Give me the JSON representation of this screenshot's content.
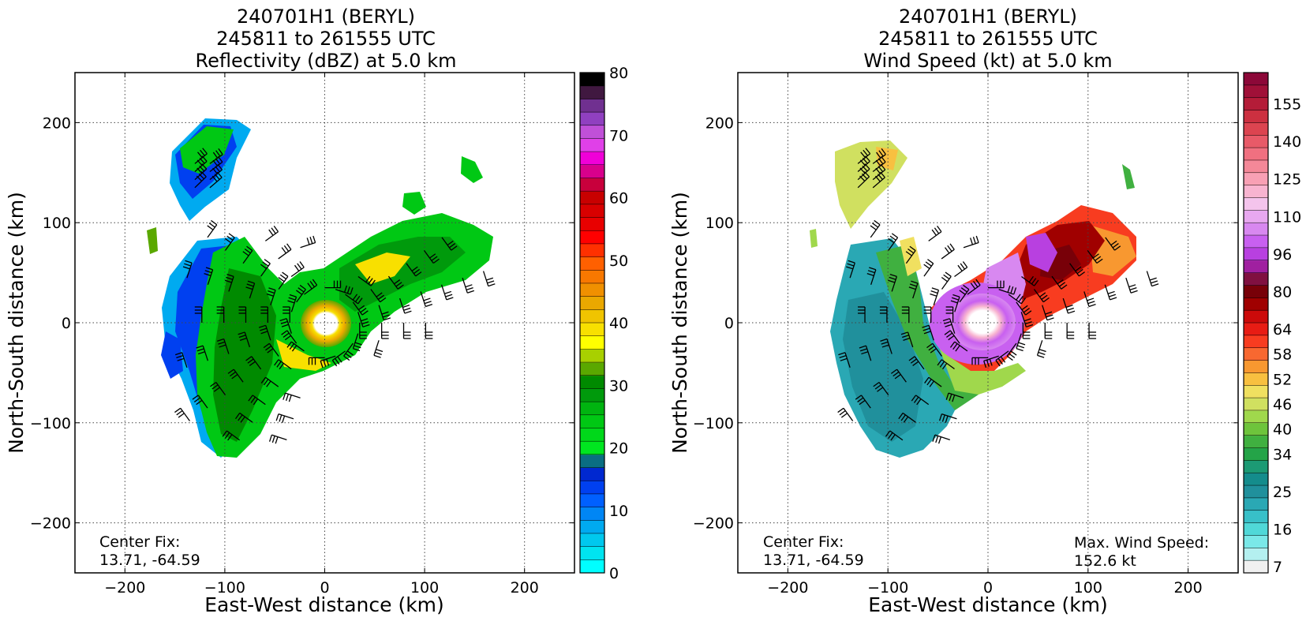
{
  "panels": [
    {
      "title_line1": "240701H1 (BERYL)",
      "title_line2": "245811 to 261555 UTC",
      "title_line3": "Reflectivity (dBZ) at 5.0 km",
      "xlabel": "East-West distance (km)",
      "ylabel": "North-South distance (km)",
      "center_fix_label": "Center Fix:",
      "center_fix_value": "13.71, -64.59"
    },
    {
      "title_line1": "240701H1 (BERYL)",
      "title_line2": "245811 to 261555 UTC",
      "title_line3": "Wind Speed (kt) at 5.0 km",
      "xlabel": "East-West distance (km)",
      "ylabel": "North-South distance (km)",
      "center_fix_label": "Center Fix:",
      "center_fix_value": "13.71, -64.59",
      "max_wind_label": "Max. Wind Speed:",
      "max_wind_value": "152.6 kt"
    }
  ],
  "chart_data": [
    {
      "type": "heatmap",
      "variable": "Reflectivity (dBZ)",
      "xlim": [
        -250,
        250
      ],
      "ylim": [
        -250,
        250
      ],
      "xticks": [
        -200,
        -100,
        0,
        100,
        200
      ],
      "yticks": [
        -200,
        -100,
        0,
        100,
        200
      ],
      "grid": true,
      "colorbar": {
        "ticks": [
          0,
          10,
          20,
          30,
          40,
          50,
          60,
          70,
          80
        ],
        "tick_labels": [
          "0",
          "10",
          "20",
          "30",
          "40",
          "50",
          "60",
          "70",
          "80"
        ],
        "colors": [
          "#00ffff",
          "#00e4f0",
          "#00c8ee",
          "#00aaf0",
          "#0086f5",
          "#0060ff",
          "#0040f0",
          "#0028d0",
          "#0a6e82",
          "#00e620",
          "#00d81a",
          "#00c814",
          "#00b410",
          "#009a0c",
          "#008a00",
          "#5aa800",
          "#a8d000",
          "#ffff00",
          "#f8e000",
          "#f0c400",
          "#eaa800",
          "#f09000",
          "#f87800",
          "#ff6000",
          "#ff3000",
          "#ff0000",
          "#e80000",
          "#d80000",
          "#c80000",
          "#c8003c",
          "#d8008c",
          "#f000d8",
          "#e040e8",
          "#c050d8",
          "#9040c0",
          "#703090",
          "#401840",
          "#000000"
        ]
      },
      "storm_center": [
        0,
        0
      ],
      "features": [
        {
          "name": "northwest-cell",
          "center": [
            -130,
            155
          ],
          "radius": [
            40,
            45
          ],
          "dominant": "blue-green"
        },
        {
          "name": "spiral-band",
          "center": [
            -70,
            0
          ],
          "radius": [
            60,
            120
          ],
          "dominant": "green"
        },
        {
          "name": "eyewall",
          "center": [
            0,
            0
          ],
          "radius": [
            25,
            25
          ],
          "dominant": "yellow"
        },
        {
          "name": "northeast-band",
          "center": [
            90,
            50
          ],
          "radius": [
            80,
            40
          ],
          "dominant": "green-yellow"
        }
      ]
    },
    {
      "type": "heatmap",
      "variable": "Wind Speed (kt)",
      "xlim": [
        -250,
        250
      ],
      "ylim": [
        -250,
        250
      ],
      "xticks": [
        -200,
        -100,
        0,
        100,
        200
      ],
      "yticks": [
        -200,
        -100,
        0,
        100,
        200
      ],
      "grid": true,
      "colorbar": {
        "ticks": [
          7,
          16,
          25,
          34,
          40,
          46,
          52,
          58,
          64,
          80,
          96,
          110,
          125,
          140,
          155
        ],
        "tick_labels": [
          "7",
          "16",
          "25",
          "34",
          "40",
          "46",
          "52",
          "58",
          "64",
          "80",
          "96",
          "110",
          "125",
          "140",
          "155"
        ],
        "colors": [
          "#f0f0f0",
          "#b4f0f0",
          "#7ae8e8",
          "#50d8d8",
          "#38c0c8",
          "#2aa8b4",
          "#20909c",
          "#148c8c",
          "#1c9a74",
          "#24a448",
          "#40b040",
          "#6ec43c",
          "#a0d84c",
          "#d0e060",
          "#f0e060",
          "#f8c040",
          "#f89830",
          "#f86830",
          "#f83c20",
          "#e81c14",
          "#cc0a0a",
          "#a00000",
          "#780008",
          "#801040",
          "#a020a0",
          "#b840e0",
          "#c860f0",
          "#d888f0",
          "#e8a8f0",
          "#f4c4ec",
          "#f8b4d0",
          "#f8a0b4",
          "#f48898",
          "#f07080",
          "#e85a68",
          "#dc4450",
          "#cc3040",
          "#b41c38",
          "#a01038",
          "#8c0838"
        ]
      },
      "max_wind_kt": 152.6,
      "features": [
        {
          "name": "eye-ring",
          "center": [
            -5,
            0
          ],
          "radius": [
            40,
            40
          ],
          "dominant": "pink-magenta"
        },
        {
          "name": "northeast-max",
          "center": [
            90,
            55
          ],
          "radius": [
            50,
            30
          ],
          "dominant": "dark-red"
        },
        {
          "name": "west-band",
          "center": [
            -100,
            -40
          ],
          "radius": [
            70,
            90
          ],
          "dominant": "teal"
        }
      ]
    }
  ]
}
